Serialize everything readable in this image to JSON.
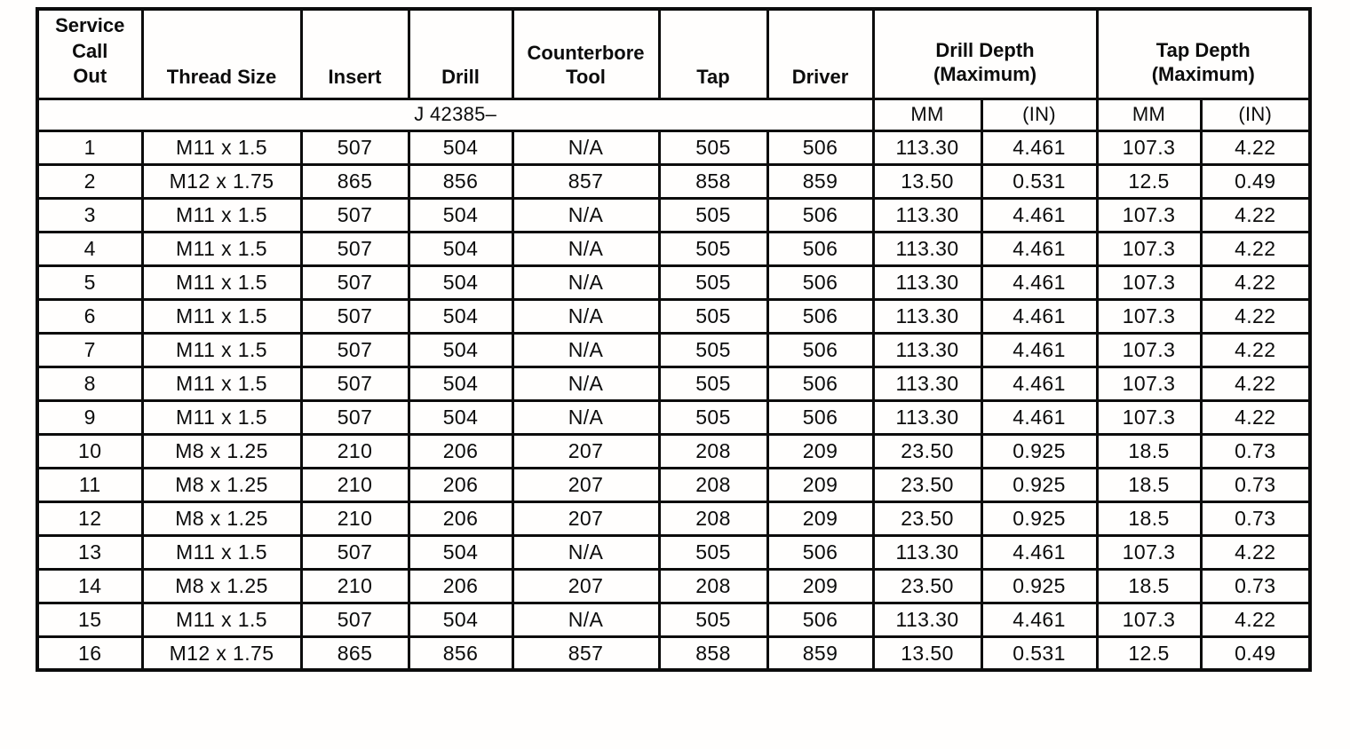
{
  "table": {
    "columns": [
      {
        "label": "Service\nCall\nOut"
      },
      {
        "label": "Thread Size"
      },
      {
        "label": "Insert"
      },
      {
        "label": "Drill"
      },
      {
        "label": "Counterbore\nTool"
      },
      {
        "label": "Tap"
      },
      {
        "label": "Driver"
      },
      {
        "label": "Drill Depth\n(Maximum)"
      },
      {
        "label": "Tap Depth\n(Maximum)"
      }
    ],
    "subheader": {
      "tool_group_label": "J 42385–",
      "units": [
        "MM",
        "(IN)",
        "MM",
        "(IN)"
      ]
    },
    "rows": [
      [
        "1",
        "M11 x 1.5",
        "507",
        "504",
        "N/A",
        "505",
        "506",
        "113.30",
        "4.461",
        "107.3",
        "4.22"
      ],
      [
        "2",
        "M12 x 1.75",
        "865",
        "856",
        "857",
        "858",
        "859",
        "13.50",
        "0.531",
        "12.5",
        "0.49"
      ],
      [
        "3",
        "M11 x 1.5",
        "507",
        "504",
        "N/A",
        "505",
        "506",
        "113.30",
        "4.461",
        "107.3",
        "4.22"
      ],
      [
        "4",
        "M11 x 1.5",
        "507",
        "504",
        "N/A",
        "505",
        "506",
        "113.30",
        "4.461",
        "107.3",
        "4.22"
      ],
      [
        "5",
        "M11 x 1.5",
        "507",
        "504",
        "N/A",
        "505",
        "506",
        "113.30",
        "4.461",
        "107.3",
        "4.22"
      ],
      [
        "6",
        "M11 x 1.5",
        "507",
        "504",
        "N/A",
        "505",
        "506",
        "113.30",
        "4.461",
        "107.3",
        "4.22"
      ],
      [
        "7",
        "M11 x 1.5",
        "507",
        "504",
        "N/A",
        "505",
        "506",
        "113.30",
        "4.461",
        "107.3",
        "4.22"
      ],
      [
        "8",
        "M11 x 1.5",
        "507",
        "504",
        "N/A",
        "505",
        "506",
        "113.30",
        "4.461",
        "107.3",
        "4.22"
      ],
      [
        "9",
        "M11 x 1.5",
        "507",
        "504",
        "N/A",
        "505",
        "506",
        "113.30",
        "4.461",
        "107.3",
        "4.22"
      ],
      [
        "10",
        "M8 x 1.25",
        "210",
        "206",
        "207",
        "208",
        "209",
        "23.50",
        "0.925",
        "18.5",
        "0.73"
      ],
      [
        "11",
        "M8 x 1.25",
        "210",
        "206",
        "207",
        "208",
        "209",
        "23.50",
        "0.925",
        "18.5",
        "0.73"
      ],
      [
        "12",
        "M8 x 1.25",
        "210",
        "206",
        "207",
        "208",
        "209",
        "23.50",
        "0.925",
        "18.5",
        "0.73"
      ],
      [
        "13",
        "M11 x 1.5",
        "507",
        "504",
        "N/A",
        "505",
        "506",
        "113.30",
        "4.461",
        "107.3",
        "4.22"
      ],
      [
        "14",
        "M8 x 1.25",
        "210",
        "206",
        "207",
        "208",
        "209",
        "23.50",
        "0.925",
        "18.5",
        "0.73"
      ],
      [
        "15",
        "M11 x 1.5",
        "507",
        "504",
        "N/A",
        "505",
        "506",
        "113.30",
        "4.461",
        "107.3",
        "4.22"
      ],
      [
        "16",
        "M12 x 1.75",
        "865",
        "856",
        "857",
        "858",
        "859",
        "13.50",
        "0.531",
        "12.5",
        "0.49"
      ]
    ]
  }
}
